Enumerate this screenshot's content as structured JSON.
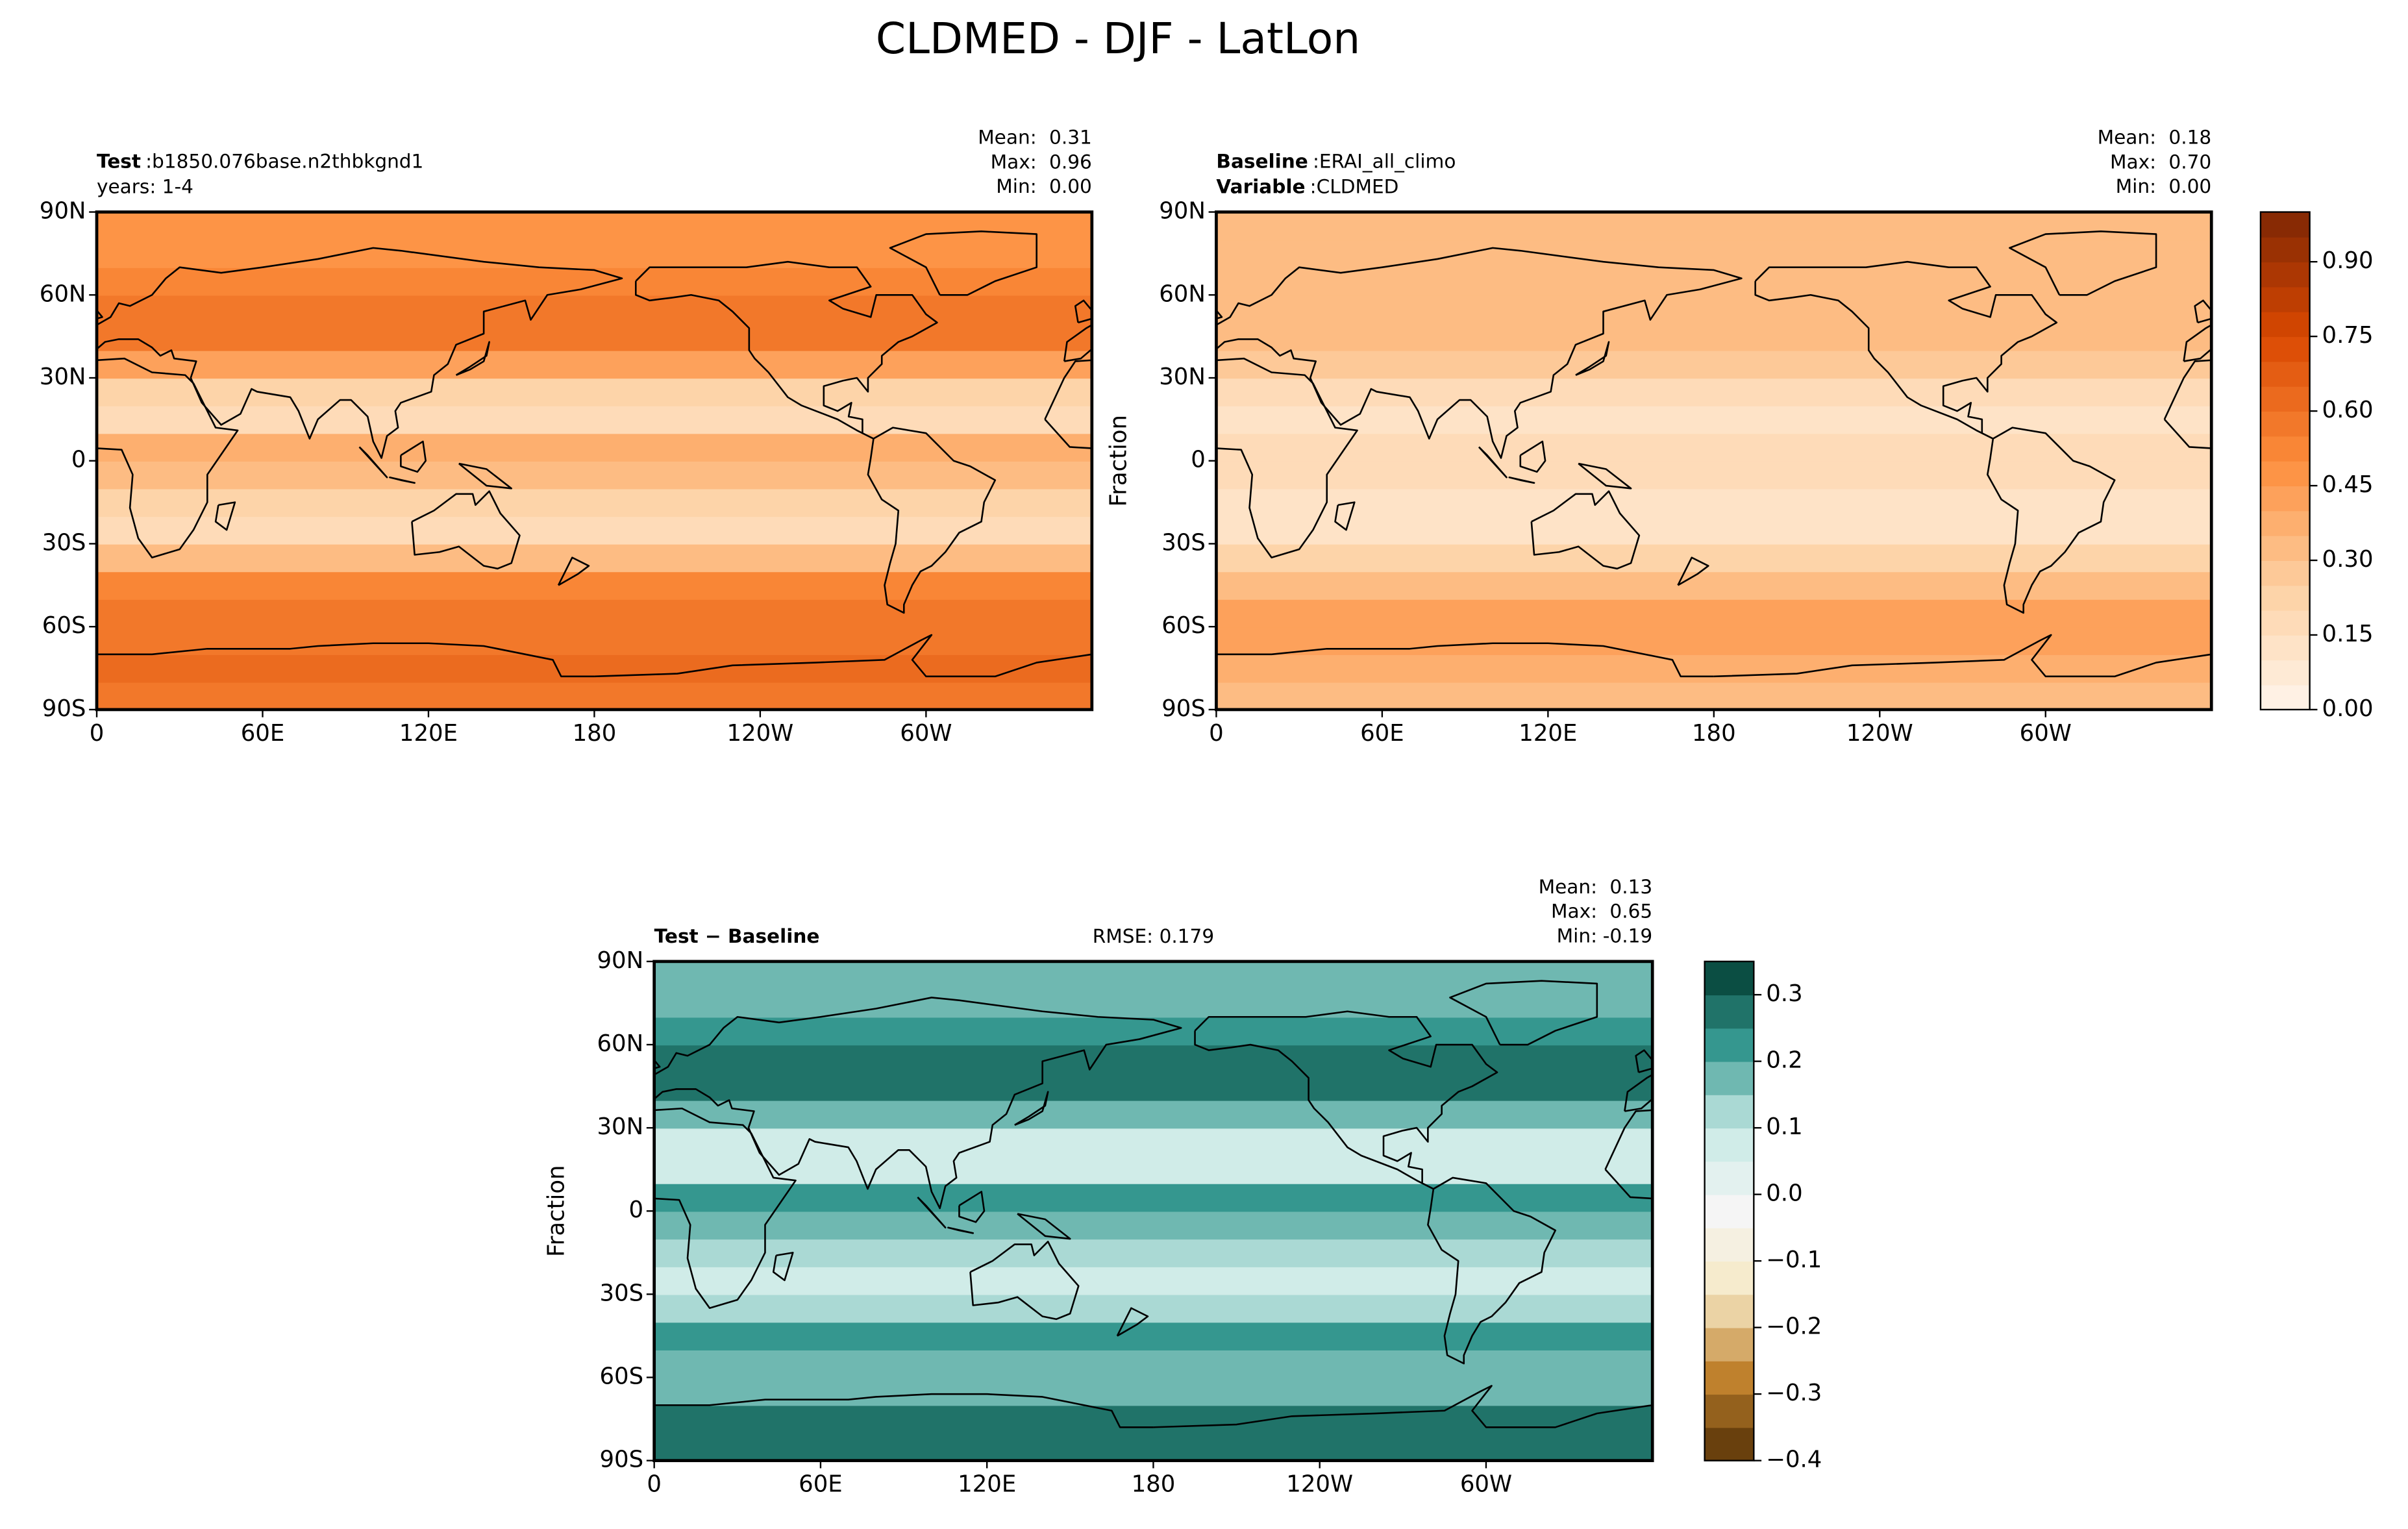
{
  "title": "CLDMED - DJF - LatLon",
  "panels": [
    {
      "header": [
        {
          "key": "Test",
          "text": ":b1850.076base.n2thbkgnd1"
        },
        {
          "text": "years: 1-4"
        }
      ],
      "stats": [
        {
          "name": "Mean:",
          "value": 0.31
        },
        {
          "name": "Max:",
          "value": 0.96
        },
        {
          "name": "Min:",
          "value": 0,
          "value_label": "0.00"
        }
      ],
      "xlim": [
        0,
        360
      ],
      "ylim": [
        -90,
        90
      ],
      "xticks": [
        0,
        {
          "value": 60,
          "label": "60E"
        },
        {
          "value": 120,
          "label": "120E"
        },
        180,
        {
          "value": 240,
          "label": "120W"
        },
        {
          "value": 300,
          "label": "60W"
        }
      ],
      "yticks": [
        {
          "value": 90,
          "label": "90N"
        },
        {
          "value": 60,
          "label": "60N"
        },
        {
          "value": 30,
          "label": "30N"
        },
        0,
        {
          "value": -30,
          "label": "30S"
        },
        {
          "value": -60,
          "label": "60S"
        },
        {
          "value": -90,
          "label": "90S"
        }
      ],
      "field": {
        "lat": [
          -85,
          -75,
          -65,
          -55,
          -45,
          -35,
          -25,
          -15,
          -5,
          5,
          15,
          25,
          35,
          45,
          55,
          65,
          75,
          85
        ],
        "values": [
          0.55,
          0.6,
          0.55,
          0.55,
          0.5,
          0.3,
          0.15,
          0.2,
          0.3,
          0.35,
          0.15,
          0.2,
          0.4,
          0.55,
          0.55,
          0.5,
          0.45,
          0.45
        ]
      }
    },
    {
      "header": [
        {
          "key": "Baseline",
          "text": ":ERAI_all_climo"
        },
        {
          "key": "Variable",
          "text": ":CLDMED"
        }
      ],
      "stats": [
        {
          "name": "Mean:",
          "value": 0.18
        },
        {
          "name": "Max:",
          "value": 0.7,
          "value_label": "0.70"
        },
        {
          "name": "Min:",
          "value": 0,
          "value_label": "0.00"
        }
      ],
      "ylabel": "Fraction",
      "xlim": [
        0,
        360
      ],
      "ylim": [
        -90,
        90
      ],
      "xticks": [
        0,
        {
          "value": 60,
          "label": "60E"
        },
        {
          "value": 120,
          "label": "120E"
        },
        180,
        {
          "value": 240,
          "label": "120W"
        },
        {
          "value": 300,
          "label": "60W"
        }
      ],
      "yticks": [
        {
          "value": 90,
          "label": "90N"
        },
        {
          "value": 60,
          "label": "60N"
        },
        {
          "value": 30,
          "label": "30N"
        },
        0,
        {
          "value": -30,
          "label": "30S"
        },
        {
          "value": -60,
          "label": "60S"
        },
        {
          "value": -90,
          "label": "90S"
        }
      ],
      "field": {
        "lat": [
          -85,
          -75,
          -65,
          -55,
          -45,
          -35,
          -25,
          -15,
          -5,
          5,
          15,
          25,
          35,
          45,
          55,
          65,
          75,
          85
        ],
        "values": [
          0.3,
          0.35,
          0.4,
          0.4,
          0.3,
          0.2,
          0.1,
          0.1,
          0.15,
          0.15,
          0.1,
          0.15,
          0.25,
          0.3,
          0.3,
          0.3,
          0.3,
          0.3
        ]
      },
      "colorbar": {
        "lim": [
          0,
          1
        ],
        "step": 0.05,
        "colors": [
          "#fff5eb",
          "#fdd0a2",
          "#fd8d3c",
          "#d94801",
          "#7f2704"
        ],
        "ticks": [
          {
            "value": 0,
            "label": "0.00"
          },
          0.15,
          {
            "value": 0.3,
            "label": "0.30"
          },
          0.45,
          {
            "value": 0.6,
            "label": "0.60"
          },
          0.75,
          {
            "value": 0.9,
            "label": "0.90"
          }
        ]
      }
    },
    {
      "header": [
        {
          "key": "Test − Baseline"
        }
      ],
      "rmse": {
        "name": "RMSE:",
        "value": 0.179
      },
      "stats": [
        {
          "name": "Mean:",
          "value": 0.13
        },
        {
          "name": "Max:",
          "value": 0.65
        },
        {
          "name": "Min:",
          "value": -0.19
        }
      ],
      "ylabel": "Fraction",
      "xlim": [
        0,
        360
      ],
      "ylim": [
        -90,
        90
      ],
      "xticks": [
        0,
        {
          "value": 60,
          "label": "60E"
        },
        {
          "value": 120,
          "label": "120E"
        },
        180,
        {
          "value": 240,
          "label": "120W"
        },
        {
          "value": 300,
          "label": "60W"
        }
      ],
      "yticks": [
        {
          "value": 90,
          "label": "90N"
        },
        {
          "value": 60,
          "label": "60N"
        },
        {
          "value": 30,
          "label": "30N"
        },
        0,
        {
          "value": -30,
          "label": "30S"
        },
        {
          "value": -60,
          "label": "60S"
        },
        {
          "value": -90,
          "label": "90S"
        }
      ],
      "field": {
        "lat": [
          -85,
          -75,
          -65,
          -55,
          -45,
          -35,
          -25,
          -15,
          -5,
          5,
          15,
          25,
          35,
          45,
          55,
          65,
          75,
          85
        ],
        "values": [
          0.25,
          0.25,
          0.15,
          0.15,
          0.2,
          0.1,
          0.05,
          0.1,
          0.15,
          0.2,
          0.05,
          0.05,
          0.15,
          0.25,
          0.25,
          0.2,
          0.15,
          0.15
        ]
      },
      "colorbar": {
        "lim": [
          -0.4,
          0.35
        ],
        "step": 0.05,
        "colors": [
          "#543005",
          "#bf812d",
          "#f6e8c3",
          "#f5f5f5",
          "#c7eae5",
          "#35978f",
          "#003c30"
        ],
        "ticks": [
          {
            "value": 0.3,
            "label": "0.3"
          },
          0.2,
          0.1,
          {
            "value": 0,
            "label": "0.0"
          },
          {
            "value": -0.1,
            "label": "−0.1"
          },
          {
            "value": -0.2,
            "label": "−0.2"
          },
          {
            "value": -0.3,
            "label": "−0.3"
          },
          {
            "value": -0.4,
            "label": "−0.4"
          }
        ]
      }
    }
  ]
}
